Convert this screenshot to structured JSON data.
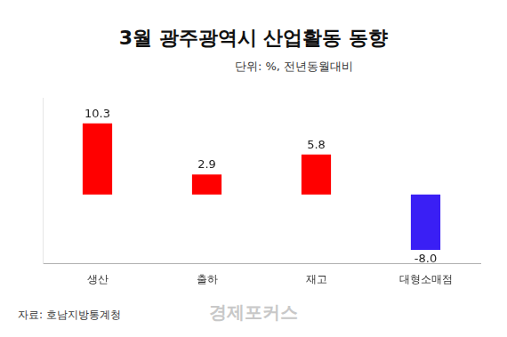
{
  "chart_data": {
    "type": "bar",
    "title": "3월 광주광역시 산업활동 동향",
    "subtitle": "단위: %, 전년동월대비",
    "categories": [
      "생산",
      "출하",
      "재고",
      "대형소매점"
    ],
    "values": [
      10.3,
      2.9,
      5.8,
      -8.0
    ],
    "value_labels": [
      "10.3",
      "2.9",
      "5.8",
      "-8.0"
    ],
    "colors": [
      "#ff0000",
      "#ff0000",
      "#ff0000",
      "#3a1ff5"
    ],
    "ylim": [
      -10,
      14
    ],
    "grid": false,
    "data_labels": true,
    "tick_labels": "x",
    "source": "자료: 호남지방통계청",
    "publisher": "경제포커스"
  }
}
